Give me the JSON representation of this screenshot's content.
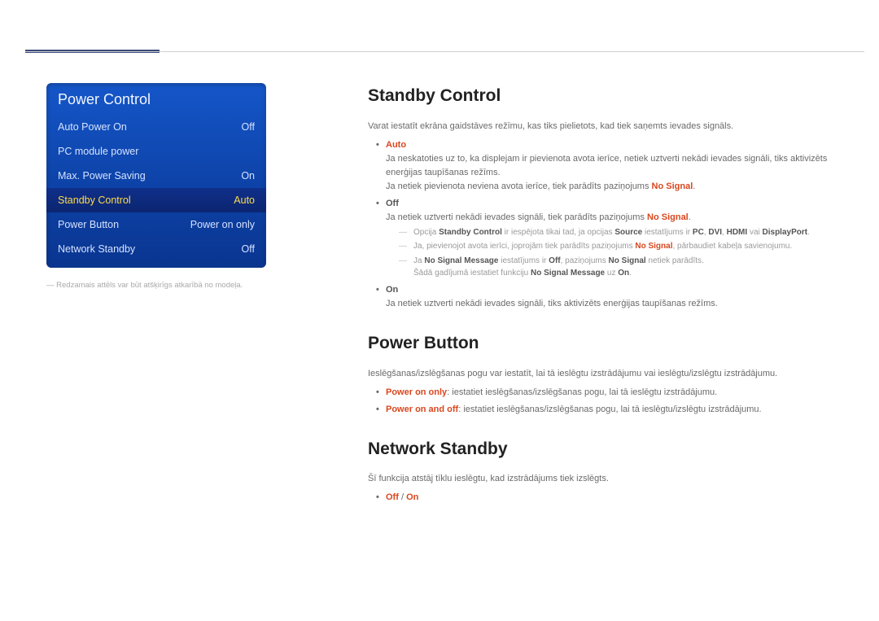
{
  "colors": {
    "accent_red": "#d9471f",
    "menu_grad_top": "#1556c9",
    "menu_grad_bot": "#0a3590",
    "selected_grad_top": "#0f2f8a",
    "selected_grad_bot": "#0b2570",
    "selected_text": "#ffdc4d",
    "menu_text": "#d5e2ff",
    "body_text": "#6a6a6a",
    "heading_text": "#222222",
    "topmark": "#3b4a7a"
  },
  "menu": {
    "title": "Power Control",
    "items": [
      {
        "label": "Auto Power On",
        "value": "Off",
        "selected": false
      },
      {
        "label": "PC module power",
        "value": "",
        "selected": false
      },
      {
        "label": "Max. Power Saving",
        "value": "On",
        "selected": false
      },
      {
        "label": "Standby Control",
        "value": "Auto",
        "selected": true
      },
      {
        "label": "Power Button",
        "value": "Power on only",
        "selected": false
      },
      {
        "label": "Network Standby",
        "value": "Off",
        "selected": false
      }
    ]
  },
  "footnote": "―  Redzamais attēls var būt atšķirīgs atkarībā no modeļa.",
  "sections": {
    "standby": {
      "heading": "Standby Control",
      "intro": "Varat iestatīt ekrāna gaidstāves režīmu, kas tiks pielietots, kad tiek saņemts ievades signāls.",
      "auto": {
        "head": "Auto",
        "p1": "Ja neskatoties uz to, ka displejam ir pievienota avota ierīce, netiek uztverti nekādi ievades signāli, tiks aktivizēts enerģijas taupīšanas režīms.",
        "p2_pre": "Ja netiek pievienota neviena avota ierīce, tiek parādīts paziņojums ",
        "p2_bold": "No Signal",
        "p2_post": "."
      },
      "off": {
        "head": "Off",
        "p1_pre": "Ja netiek uztverti nekādi ievades signāli, tiek parādīts paziņojums ",
        "p1_bold": "No Signal",
        "p1_post": ".",
        "sub1": {
          "pre": "Opcija ",
          "b1": "Standby Control",
          "mid1": " ir iespējota tikai tad, ja opcijas ",
          "b2": "Source",
          "mid2": " iestatījums ir ",
          "b3": "PC",
          "c1": ", ",
          "b4": "DVI",
          "c2": ", ",
          "b5": "HDMI",
          "mid3": " vai ",
          "b6": "DisplayPort",
          "post": "."
        },
        "sub2": {
          "pre": "Ja, pievienojot avota ierīci, joprojām tiek parādīts paziņojums ",
          "b1": "No Signal",
          "post": ", pārbaudiet kabeļa savienojumu."
        },
        "sub3": {
          "pre": "Ja ",
          "b1": "No Signal Message",
          "mid1": " iestatījums ir ",
          "b2": "Off",
          "mid2": ", paziņojums ",
          "b3": "No Signal",
          "post": " netiek parādīts."
        },
        "sub3b": {
          "pre": "Šādā gadījumā iestatiet funkciju ",
          "b1": "No Signal Message",
          "mid": " uz ",
          "b2": "On",
          "post": "."
        }
      },
      "on": {
        "head": "On",
        "p1": "Ja netiek uztverti nekādi ievades signāli, tiks aktivizēts enerģijas taupīšanas režīms."
      }
    },
    "powerbtn": {
      "heading": "Power Button",
      "intro": "Ieslēgšanas/izslēgšanas pogu var iestatīt, lai tā ieslēgtu izstrādājumu vai ieslēgtu/izslēgtu izstrādājumu.",
      "b1_head": "Power on only",
      "b1_text": ": iestatiet ieslēgšanas/izslēgšanas pogu, lai tā ieslēgtu izstrādājumu.",
      "b2_head": "Power on and off",
      "b2_text": ": iestatiet ieslēgšanas/izslēgšanas pogu, lai tā ieslēgtu/izslēgtu izstrādājumu."
    },
    "netstandby": {
      "heading": "Network Standby",
      "intro": "Šī funkcija atstāj tīklu ieslēgtu, kad izstrādājums tiek izslēgts.",
      "opt_off": "Off",
      "opt_sep": " / ",
      "opt_on": "On"
    }
  }
}
